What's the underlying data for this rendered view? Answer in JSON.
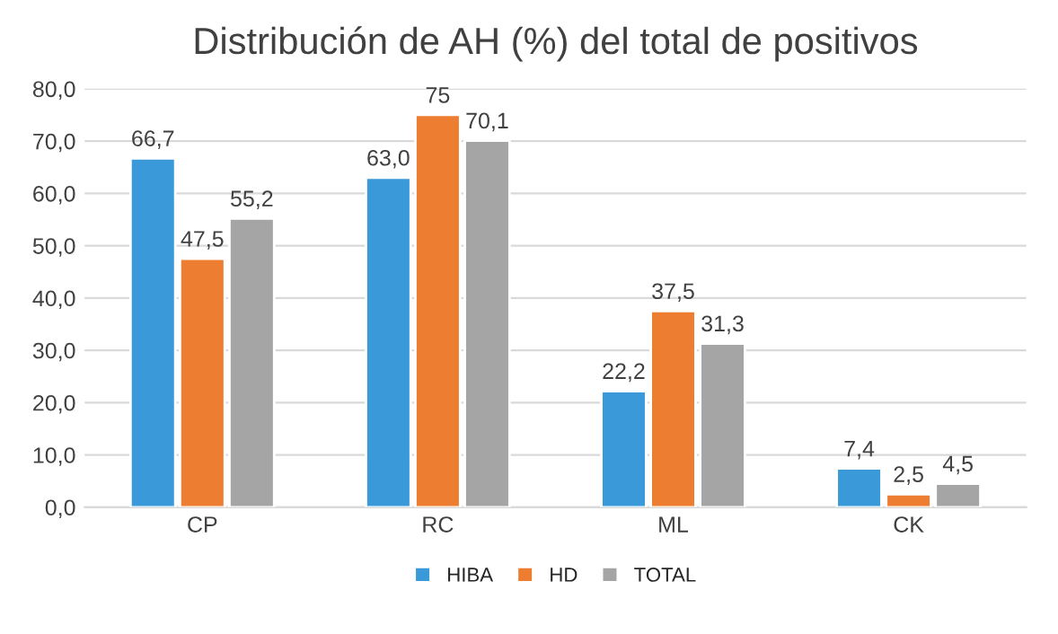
{
  "chart_data": {
    "type": "bar",
    "title": "Distribución de AH (%) del total de positivos",
    "categories": [
      "CP",
      "RC",
      "ML",
      "CK"
    ],
    "series": [
      {
        "name": "HIBA",
        "color": "#3a9ad9",
        "values": [
          66.7,
          63.0,
          22.2,
          7.4
        ],
        "value_labels": [
          "66,7",
          "63,0",
          "22,2",
          "7,4"
        ]
      },
      {
        "name": "HD",
        "color": "#ed7d31",
        "values": [
          47.5,
          75,
          37.5,
          2.5
        ],
        "value_labels": [
          "47,5",
          "75",
          "37,5",
          "2,5"
        ]
      },
      {
        "name": "TOTAL",
        "color": "#a5a5a5",
        "values": [
          55.2,
          70.1,
          31.3,
          4.5
        ],
        "value_labels": [
          "55,2",
          "70,1",
          "31,3",
          "4,5"
        ]
      }
    ],
    "ylim": [
      0,
      80
    ],
    "yticks": [
      {
        "value": 0,
        "label": "0,0"
      },
      {
        "value": 10,
        "label": "10,0"
      },
      {
        "value": 20,
        "label": "20,0"
      },
      {
        "value": 30,
        "label": "30,0"
      },
      {
        "value": 40,
        "label": "40,0"
      },
      {
        "value": 50,
        "label": "50,0"
      },
      {
        "value": 60,
        "label": "60,0"
      },
      {
        "value": 70,
        "label": "70,0"
      },
      {
        "value": 80,
        "label": "80,0"
      }
    ],
    "grid": "y",
    "legend": "bottom"
  }
}
